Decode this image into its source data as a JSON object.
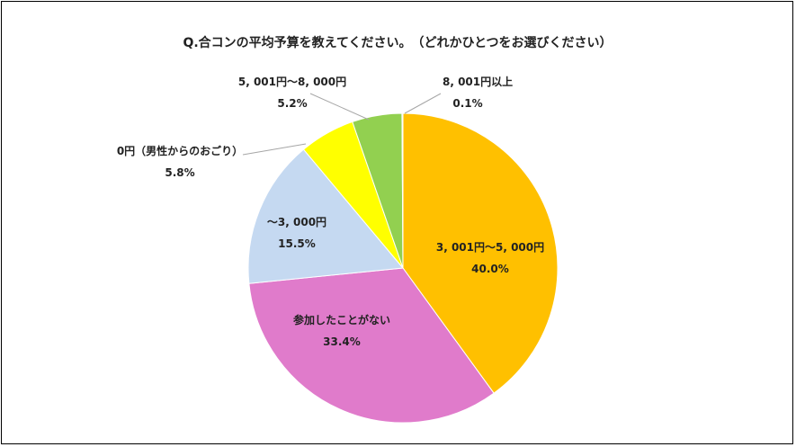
{
  "chart_data": {
    "type": "pie",
    "title": "Q.合コンの平均予算を教えてください。　（どれかひとつをお選びください）",
    "start_angle_deg": 0,
    "direction": "clockwise",
    "slices": [
      {
        "label": "3, 001円～5, 000円",
        "value_label": "40.0%",
        "value": 40.0,
        "color": "#FFC000"
      },
      {
        "label": "参加したことがない",
        "value_label": "33.4%",
        "value": 33.4,
        "color": "#E07BCB"
      },
      {
        "label": "～3, 000円",
        "value_label": "15.5%",
        "value": 15.5,
        "color": "#C5D9F1"
      },
      {
        "label": "0円（男性からのおごり）",
        "value_label": "5.8%",
        "value": 5.8,
        "color": "#FFFF00"
      },
      {
        "label": "5, 001円～8, 000円",
        "value_label": "5.2%",
        "value": 5.2,
        "color": "#92D050"
      },
      {
        "label": "8, 001円以上",
        "value_label": "0.1%",
        "value": 0.1,
        "color": "#C0C0C0"
      }
    ]
  }
}
